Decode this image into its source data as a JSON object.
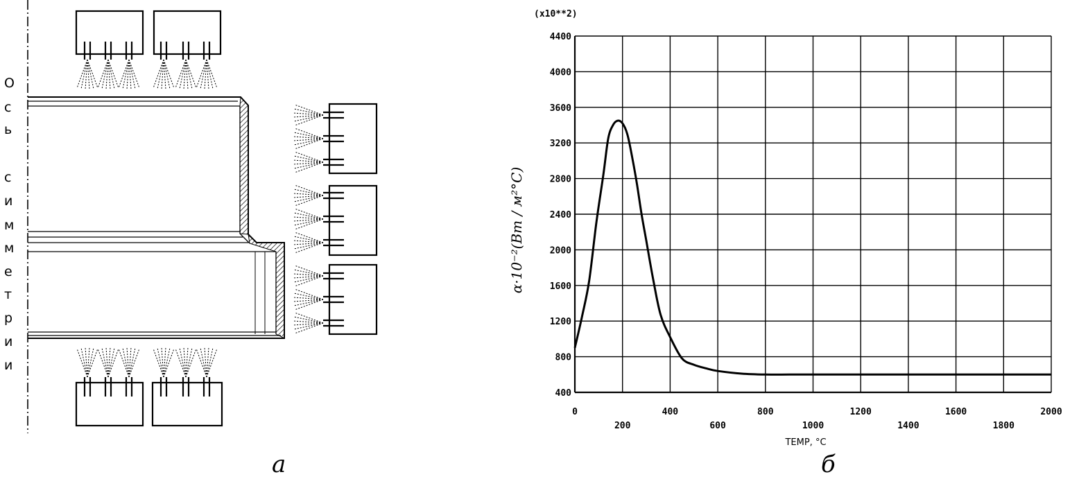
{
  "diagram": {
    "axis_label_letters": [
      "О",
      "с",
      "ь",
      "с",
      "и",
      "м",
      "м",
      "е",
      "т",
      "р",
      "и",
      "и"
    ],
    "caption_a": "а"
  },
  "chart_data": {
    "type": "line",
    "multiplier_label": "(x10**2)",
    "xlabel": "TEMP, °C",
    "ylabel": "α·10⁻²(Вт / м²°С)",
    "caption": "б",
    "xlim": [
      0,
      2000
    ],
    "ylim": [
      400,
      4400
    ],
    "xticks": [
      0,
      200,
      400,
      600,
      800,
      1000,
      1200,
      1400,
      1600,
      1800,
      2000
    ],
    "yticks": [
      400,
      800,
      1200,
      1600,
      2000,
      2400,
      2800,
      3200,
      3600,
      4000,
      4400
    ],
    "grid": true,
    "series": [
      {
        "x": [
          0,
          30,
          60,
          90,
          120,
          140,
          160,
          180,
          200,
          220,
          240,
          260,
          280,
          300,
          330,
          360,
          400,
          450,
          500,
          550,
          600,
          700,
          800,
          900,
          1000,
          1200,
          1400,
          1600,
          1800,
          2000
        ],
        "y": [
          900,
          1250,
          1650,
          2300,
          2850,
          3250,
          3400,
          3450,
          3420,
          3300,
          3050,
          2750,
          2400,
          2100,
          1650,
          1270,
          1020,
          780,
          710,
          670,
          640,
          610,
          600,
          600,
          600,
          600,
          600,
          600,
          600,
          600
        ]
      }
    ]
  }
}
